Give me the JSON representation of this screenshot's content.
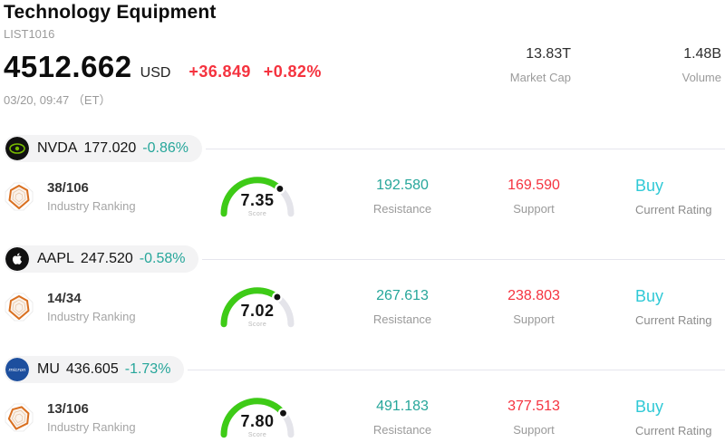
{
  "header": {
    "title": "Technology Equipment",
    "list_id": "LIST1016",
    "price": "4512.662",
    "currency": "USD",
    "change": "+36.849",
    "change_pct": "+0.82%",
    "timestamp": "03/20, 09:47 （ET）",
    "market_cap": {
      "value": "13.83T",
      "label": "Market Cap"
    },
    "volume": {
      "value": "1.48B",
      "label": "Volume"
    }
  },
  "labels": {
    "industry_ranking": "Industry Ranking",
    "score": "Score",
    "resistance": "Resistance",
    "support": "Support",
    "current_rating": "Current Rating"
  },
  "colors": {
    "positive_teal": "#26a69a",
    "negative_red": "#f5333f",
    "rating_cyan": "#30c9d6",
    "gauge_green": "#3ecb17",
    "gauge_track": "#e4e4ea",
    "pill_background": "#f3f3f4",
    "nvidia_green": "#76b900",
    "micron_blue": "#1d4f9e"
  },
  "stocks": [
    {
      "ticker": "NVDA",
      "logo": "nvidia-logo",
      "price": "177.020",
      "change_pct": "-0.86%",
      "rank": "38/106",
      "score": "7.35",
      "resistance": "192.580",
      "support": "169.590",
      "rating": "Buy"
    },
    {
      "ticker": "AAPL",
      "logo": "apple-logo",
      "price": "247.520",
      "change_pct": "-0.58%",
      "rank": "14/34",
      "score": "7.02",
      "resistance": "267.613",
      "support": "238.803",
      "rating": "Buy"
    },
    {
      "ticker": "MU",
      "logo": "micron-logo",
      "price": "436.605",
      "change_pct": "-1.73%",
      "rank": "13/106",
      "score": "7.80",
      "resistance": "491.183",
      "support": "377.513",
      "rating": "Buy"
    }
  ]
}
